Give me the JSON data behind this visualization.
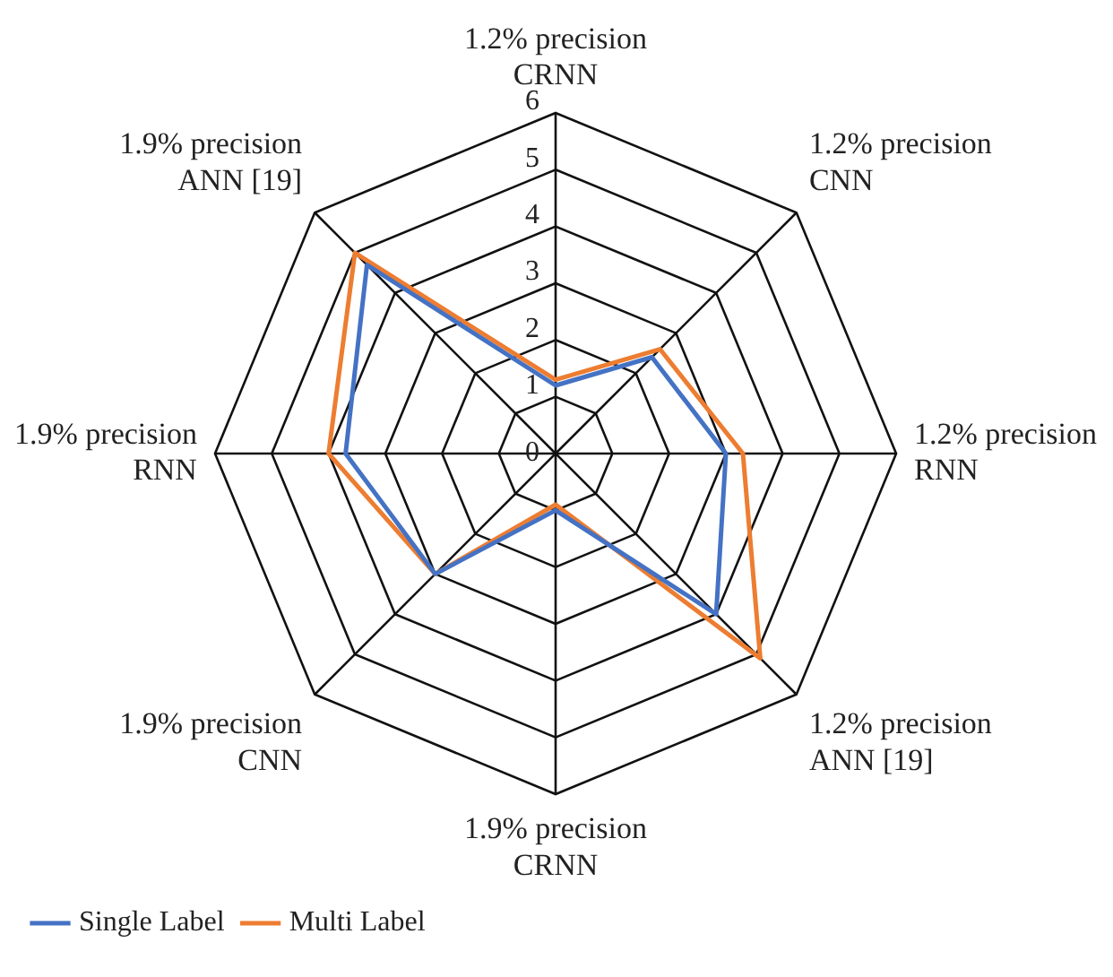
{
  "chart_data": {
    "type": "radar",
    "categories": [
      "1.2% precision\nCRNN",
      "1.2% precision\nCNN",
      "1.2% precision\nRNN",
      "1.2% precision\nANN [19]",
      "1.9% precision\nCRNN",
      "1.9% precision\nCNN",
      "1.9% precision\nRNN",
      "1.9% precision\nANN [19]"
    ],
    "series": [
      {
        "name": "Single Label",
        "color": "#4472c4",
        "values": [
          1.2,
          2.4,
          3.0,
          4.0,
          1.0,
          3.0,
          3.7,
          4.7
        ]
      },
      {
        "name": "Multi Label",
        "color": "#ed7d31",
        "values": [
          1.3,
          2.6,
          3.3,
          5.1,
          0.9,
          3.0,
          4.0,
          5.0
        ]
      }
    ],
    "ylim": [
      0,
      6
    ],
    "yticks": [
      0,
      1,
      2,
      3,
      4,
      5,
      6
    ],
    "legend": "bottom",
    "marker": "none",
    "grid": true
  }
}
